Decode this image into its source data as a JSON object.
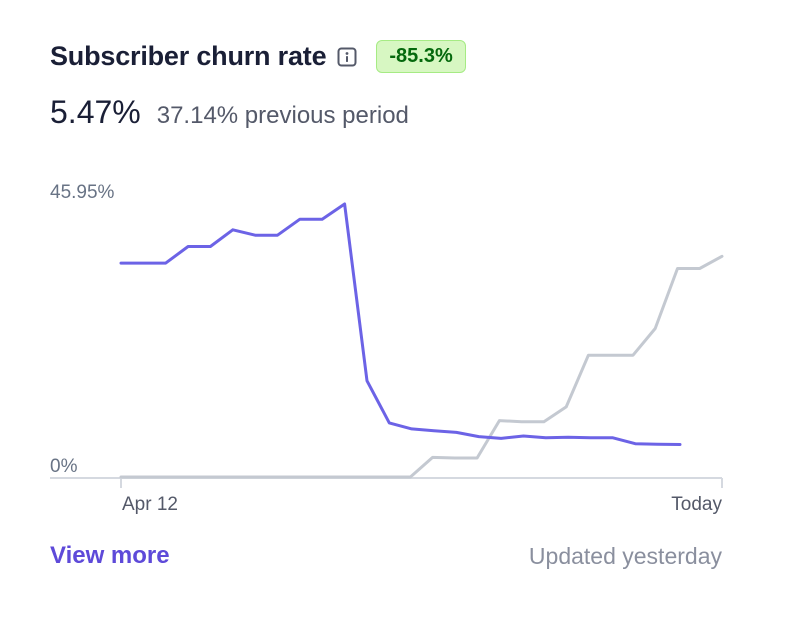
{
  "card": {
    "title": "Subscriber churn rate",
    "change_badge": "-85.3%",
    "current_value": "5.47%",
    "previous_text": "37.14% previous period",
    "view_more": "View more",
    "updated": "Updated yesterday"
  },
  "colors": {
    "current_series": "#6c63e6",
    "previous_series": "#c4c9d1",
    "badge_bg": "#d7f7c2",
    "badge_text": "#05690d",
    "link": "#5e4ad9"
  },
  "chart_data": {
    "type": "line",
    "y_max_label": "45.95%",
    "y_min_label": "0%",
    "x_start_label": "Apr 12",
    "x_end_label": "Today",
    "ylim": [
      0,
      45.95
    ],
    "grid": false,
    "series": [
      {
        "key": "current",
        "values": [
          36.0,
          36.0,
          36.0,
          38.8,
          38.8,
          41.6,
          40.7,
          40.7,
          43.4,
          43.4,
          45.95,
          16.2,
          9.1,
          8.1,
          7.8,
          7.5,
          6.8,
          6.5,
          6.9,
          6.6,
          6.7,
          6.6,
          6.6,
          5.6,
          5.5,
          5.47
        ]
      },
      {
        "key": "previous",
        "values": [
          0,
          0,
          0,
          0,
          0,
          0,
          0,
          0,
          0,
          0,
          0,
          0,
          0,
          0,
          3.3,
          3.2,
          3.2,
          9.5,
          9.3,
          9.3,
          11.8,
          20.5,
          20.5,
          20.5,
          25.0,
          35.1,
          35.1,
          37.14
        ]
      }
    ]
  }
}
